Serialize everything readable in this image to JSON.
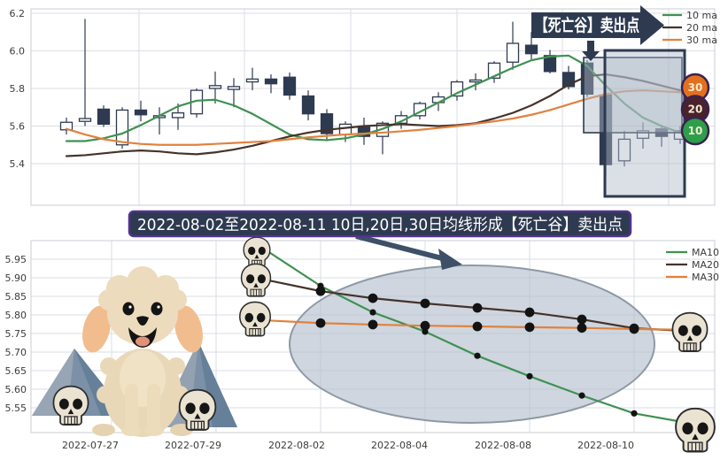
{
  "banner": {
    "text": "2022-08-02至2022-08-11 10日,20日,30日均线形成【死亡谷】卖出点",
    "bg": "#2e3a50",
    "border": "#53318f"
  },
  "colors": {
    "ma10": "#3f9152",
    "ma20": "#45332a",
    "ma30": "#e0823d",
    "candle": "#2e3a50",
    "highlight": "#b2bdcb",
    "arrow": "#3d5068"
  },
  "chart_data": [
    {
      "type": "candlestick",
      "panel": "top",
      "annotation": "【死亡谷】卖出点",
      "legend_position": "upper right",
      "grid": true,
      "ylim": [
        5.18,
        6.22
      ],
      "y_ticks": [
        6.2,
        6.0,
        5.8,
        5.6,
        5.4
      ],
      "badges": [
        {
          "label": "30",
          "color": "#e2711f"
        },
        {
          "label": "20",
          "color": "#49222b"
        },
        {
          "label": "10",
          "color": "#2e9e4a"
        }
      ],
      "candles_ohlc": [
        [
          5.58,
          5.645,
          5.555,
          5.62
        ],
        [
          5.625,
          6.17,
          5.6,
          5.64
        ],
        [
          5.69,
          5.71,
          5.595,
          5.61
        ],
        [
          5.5,
          5.7,
          5.48,
          5.685
        ],
        [
          5.685,
          5.735,
          5.625,
          5.66
        ],
        [
          5.645,
          5.7,
          5.555,
          5.655
        ],
        [
          5.645,
          5.72,
          5.58,
          5.67
        ],
        [
          5.665,
          5.8,
          5.645,
          5.79
        ],
        [
          5.8,
          5.89,
          5.72,
          5.815
        ],
        [
          5.795,
          5.855,
          5.7,
          5.81
        ],
        [
          5.835,
          5.91,
          5.79,
          5.85
        ],
        [
          5.85,
          5.875,
          5.775,
          5.825
        ],
        [
          5.86,
          5.885,
          5.74,
          5.765
        ],
        [
          5.76,
          5.79,
          5.63,
          5.665
        ],
        [
          5.665,
          5.69,
          5.52,
          5.56
        ],
        [
          5.555,
          5.625,
          5.515,
          5.61
        ],
        [
          5.6,
          5.645,
          5.5,
          5.545
        ],
        [
          5.545,
          5.625,
          5.45,
          5.615
        ],
        [
          5.615,
          5.68,
          5.585,
          5.655
        ],
        [
          5.655,
          5.73,
          5.635,
          5.72
        ],
        [
          5.725,
          5.78,
          5.68,
          5.755
        ],
        [
          5.76,
          5.845,
          5.735,
          5.835
        ],
        [
          5.835,
          5.88,
          5.79,
          5.845
        ],
        [
          5.855,
          5.945,
          5.83,
          5.935
        ],
        [
          5.94,
          6.155,
          5.9,
          6.04
        ],
        [
          6.03,
          6.1,
          5.955,
          5.985
        ],
        [
          5.975,
          6.005,
          5.88,
          5.89
        ],
        [
          5.885,
          5.92,
          5.795,
          5.81
        ],
        [
          5.935,
          5.95,
          5.755,
          5.77
        ],
        [
          5.765,
          5.775,
          5.33,
          5.395
        ],
        [
          5.415,
          5.575,
          5.385,
          5.53
        ],
        [
          5.535,
          5.62,
          5.48,
          5.575
        ],
        [
          5.585,
          5.605,
          5.49,
          5.545
        ],
        [
          5.53,
          5.6,
          5.505,
          5.575
        ]
      ],
      "series": [
        {
          "name": "10 ma",
          "color": "#3f9152",
          "values": [
            5.52,
            5.52,
            5.535,
            5.56,
            5.605,
            5.655,
            5.705,
            5.735,
            5.74,
            5.71,
            5.665,
            5.61,
            5.555,
            5.53,
            5.525,
            5.535,
            5.555,
            5.585,
            5.625,
            5.675,
            5.725,
            5.775,
            5.82,
            5.865,
            5.91,
            5.95,
            5.97,
            5.975,
            5.92,
            5.815,
            5.72,
            5.645,
            5.6,
            5.565
          ]
        },
        {
          "name": "20 ma",
          "color": "#45332a",
          "values": [
            5.44,
            5.445,
            5.455,
            5.465,
            5.47,
            5.465,
            5.455,
            5.45,
            5.46,
            5.475,
            5.495,
            5.52,
            5.545,
            5.565,
            5.58,
            5.59,
            5.6,
            5.605,
            5.61,
            5.605,
            5.6,
            5.605,
            5.615,
            5.64,
            5.67,
            5.71,
            5.76,
            5.82,
            5.865,
            5.875,
            5.86,
            5.84,
            5.815,
            5.79
          ]
        },
        {
          "name": "30 ma",
          "color": "#e0823d",
          "values": [
            5.585,
            5.555,
            5.53,
            5.515,
            5.505,
            5.5,
            5.5,
            5.5,
            5.505,
            5.51,
            5.515,
            5.52,
            5.53,
            5.54,
            5.548,
            5.555,
            5.56,
            5.565,
            5.572,
            5.58,
            5.59,
            5.6,
            5.612,
            5.625,
            5.64,
            5.66,
            5.685,
            5.715,
            5.745,
            5.77,
            5.785,
            5.79,
            5.785,
            5.78
          ]
        }
      ]
    },
    {
      "type": "line",
      "panel": "bottom",
      "legend_position": "upper right",
      "grid": true,
      "ylim": [
        5.5,
        6.0
      ],
      "y_ticks": [
        5.95,
        5.9,
        5.85,
        5.8,
        5.75,
        5.7,
        5.65,
        5.6,
        5.55
      ],
      "x": [
        "2022-08-01",
        "2022-08-02",
        "2022-08-03",
        "2022-08-04",
        "2022-08-05",
        "2022-08-08",
        "2022-08-09",
        "2022-08-10",
        "2022-08-11"
      ],
      "x_ticks": [
        "2022-07-27",
        "2022-07-29",
        "2022-08-02",
        "2022-08-04",
        "2022-08-08",
        "2022-08-10"
      ],
      "series": [
        {
          "name": "MA10",
          "color": "#3f9152",
          "values": [
            5.97,
            5.878,
            5.807,
            5.755,
            5.69,
            5.635,
            5.583,
            5.535,
            5.51
          ]
        },
        {
          "name": "MA20",
          "color": "#45332a",
          "values": [
            5.893,
            5.864,
            5.845,
            5.831,
            5.819,
            5.807,
            5.788,
            5.764,
            5.757
          ]
        },
        {
          "name": "MA30",
          "color": "#e0823d",
          "values": [
            5.785,
            5.778,
            5.774,
            5.771,
            5.769,
            5.767,
            5.765,
            5.762,
            5.76
          ]
        }
      ]
    }
  ]
}
